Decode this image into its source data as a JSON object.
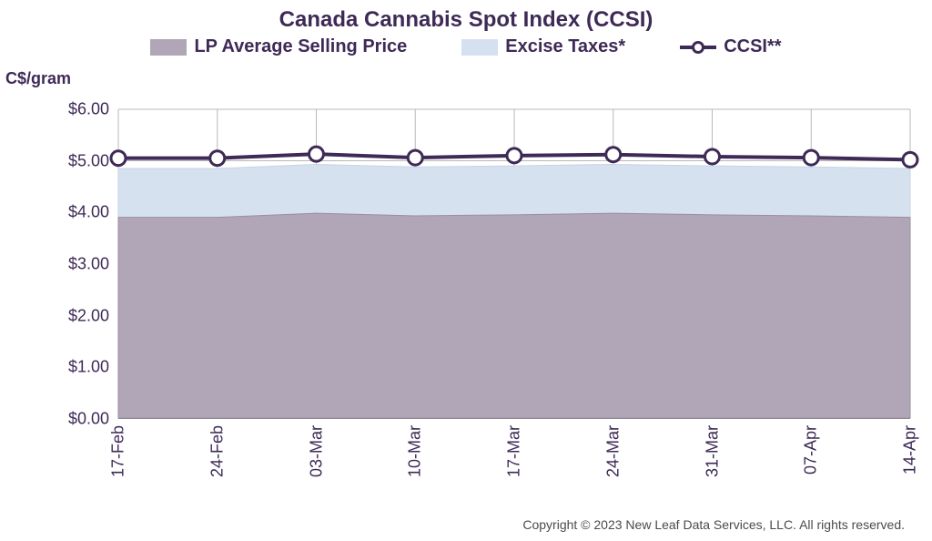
{
  "chart": {
    "type": "area+line",
    "title": "Canada Cannabis Spot Index (CCSI)",
    "title_color": "#3e2a56",
    "title_fontsize": 24,
    "ylabel": "C$/gram",
    "ylabel_color": "#3e2a56",
    "ylabel_fontsize": 18,
    "background_color": "#ffffff",
    "grid_color": "#b8b8b8",
    "axis_color": "#888888",
    "tick_label_color": "#3e2a56",
    "tick_fontsize": 18,
    "ylim": [
      0,
      6
    ],
    "ytick_step": 1,
    "ytick_labels": [
      "$0.00",
      "$1.00",
      "$2.00",
      "$3.00",
      "$4.00",
      "$5.00",
      "$6.00"
    ],
    "categories": [
      "17-Feb",
      "24-Feb",
      "03-Mar",
      "10-Mar",
      "17-Mar",
      "24-Mar",
      "31-Mar",
      "07-Apr",
      "14-Apr"
    ],
    "legend": {
      "items": [
        {
          "label": "LP Average Selling Price",
          "type": "area",
          "color": "#b1a6b7"
        },
        {
          "label": "Excise Taxes*",
          "type": "area",
          "color": "#d5e1ef"
        },
        {
          "label": "CCSI**",
          "type": "line",
          "color": "#3e2a56",
          "marker_fill": "#ffffff",
          "marker_stroke": "#3e2a56"
        }
      ],
      "fontsize": 20,
      "text_color": "#3e2a56"
    },
    "series": {
      "lp_avg": {
        "label": "LP Average Selling Price",
        "values": [
          3.9,
          3.9,
          3.98,
          3.93,
          3.95,
          3.98,
          3.95,
          3.93,
          3.9
        ],
        "fill_color": "#b1a6b7",
        "stroke_color": "#9a8ea0",
        "stroke_width": 1
      },
      "excise_top": {
        "label": "Excise Taxes*",
        "values": [
          4.85,
          4.85,
          4.93,
          4.88,
          4.9,
          4.93,
          4.9,
          4.88,
          4.85
        ],
        "fill_color": "#d5e1ef",
        "stroke_color": "#c6d4e6",
        "stroke_width": 1
      },
      "ccsi": {
        "label": "CCSI**",
        "values": [
          5.05,
          5.05,
          5.13,
          5.06,
          5.1,
          5.12,
          5.08,
          5.06,
          5.02
        ],
        "line_color": "#3e2a56",
        "line_width": 4,
        "marker_fill": "#ffffff",
        "marker_stroke": "#3e2a56",
        "marker_stroke_width": 3,
        "marker_radius": 8
      }
    },
    "copyright": "Copyright © 2023 New Leaf Data Services, LLC. All rights reserved.",
    "copyright_color": "#4a4a4a",
    "copyright_fontsize": 14
  }
}
